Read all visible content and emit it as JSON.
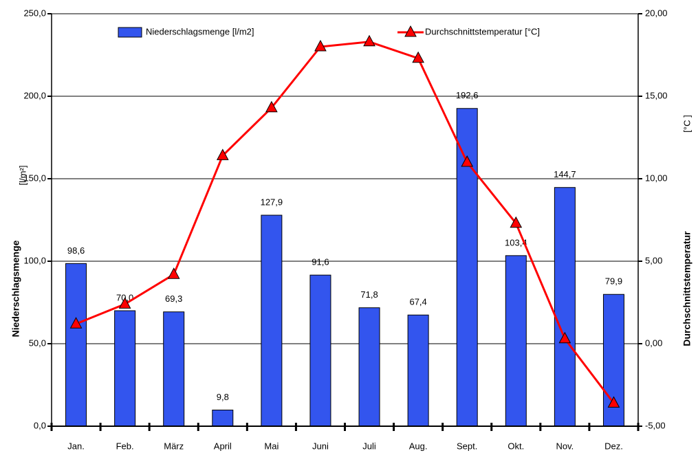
{
  "chart_data": {
    "type": "bar",
    "categories": [
      "Jan.",
      "Feb.",
      "März",
      "April",
      "Mai",
      "Juni",
      "Juli",
      "Aug.",
      "Sept.",
      "Okt.",
      "Nov.",
      "Dez."
    ],
    "series": [
      {
        "name": "Niederschlagsmenge [l/m2]",
        "type": "bar",
        "color": "#3355ee",
        "values": [
          98.6,
          70.0,
          69.3,
          9.8,
          127.9,
          91.6,
          71.8,
          67.4,
          192.6,
          103.4,
          144.7,
          79.9
        ],
        "value_labels": [
          "98,6",
          "70,0",
          "69,3",
          "9,8",
          "127,9",
          "91,6",
          "71,8",
          "67,4",
          "192,6",
          "103,4",
          "144,7",
          "79,9"
        ]
      },
      {
        "name": "Durchschnittstemperatur [°C]",
        "type": "line",
        "axis": "y2",
        "color": "#ff0000",
        "values": [
          1.2,
          2.4,
          4.2,
          11.4,
          14.3,
          18.0,
          18.3,
          17.3,
          11.0,
          7.3,
          0.3,
          -3.6
        ]
      }
    ],
    "ylabel": "Niederschlagsmenge",
    "yunit": "[l/m²]",
    "y2label": "Durchschnittstemperatur",
    "y2unit": "[°C ]",
    "ylim": [
      0,
      250
    ],
    "yticks": [
      {
        "value": 0,
        "label": "0,0"
      },
      {
        "value": 50,
        "label": "50,0"
      },
      {
        "value": 100,
        "label": "100,0"
      },
      {
        "value": 150,
        "label": "150,0"
      },
      {
        "value": 200,
        "label": "200,0"
      },
      {
        "value": 250,
        "label": "250,0"
      }
    ],
    "y2lim": [
      -5,
      20
    ],
    "y2ticks": [
      {
        "value": -5,
        "label": "-5,00"
      },
      {
        "value": 0,
        "label": "0,00"
      },
      {
        "value": 5,
        "label": "5,00"
      },
      {
        "value": 10,
        "label": "10,00"
      },
      {
        "value": 15,
        "label": "15,00"
      },
      {
        "value": 20,
        "label": "20,00"
      }
    ],
    "grid": true
  }
}
